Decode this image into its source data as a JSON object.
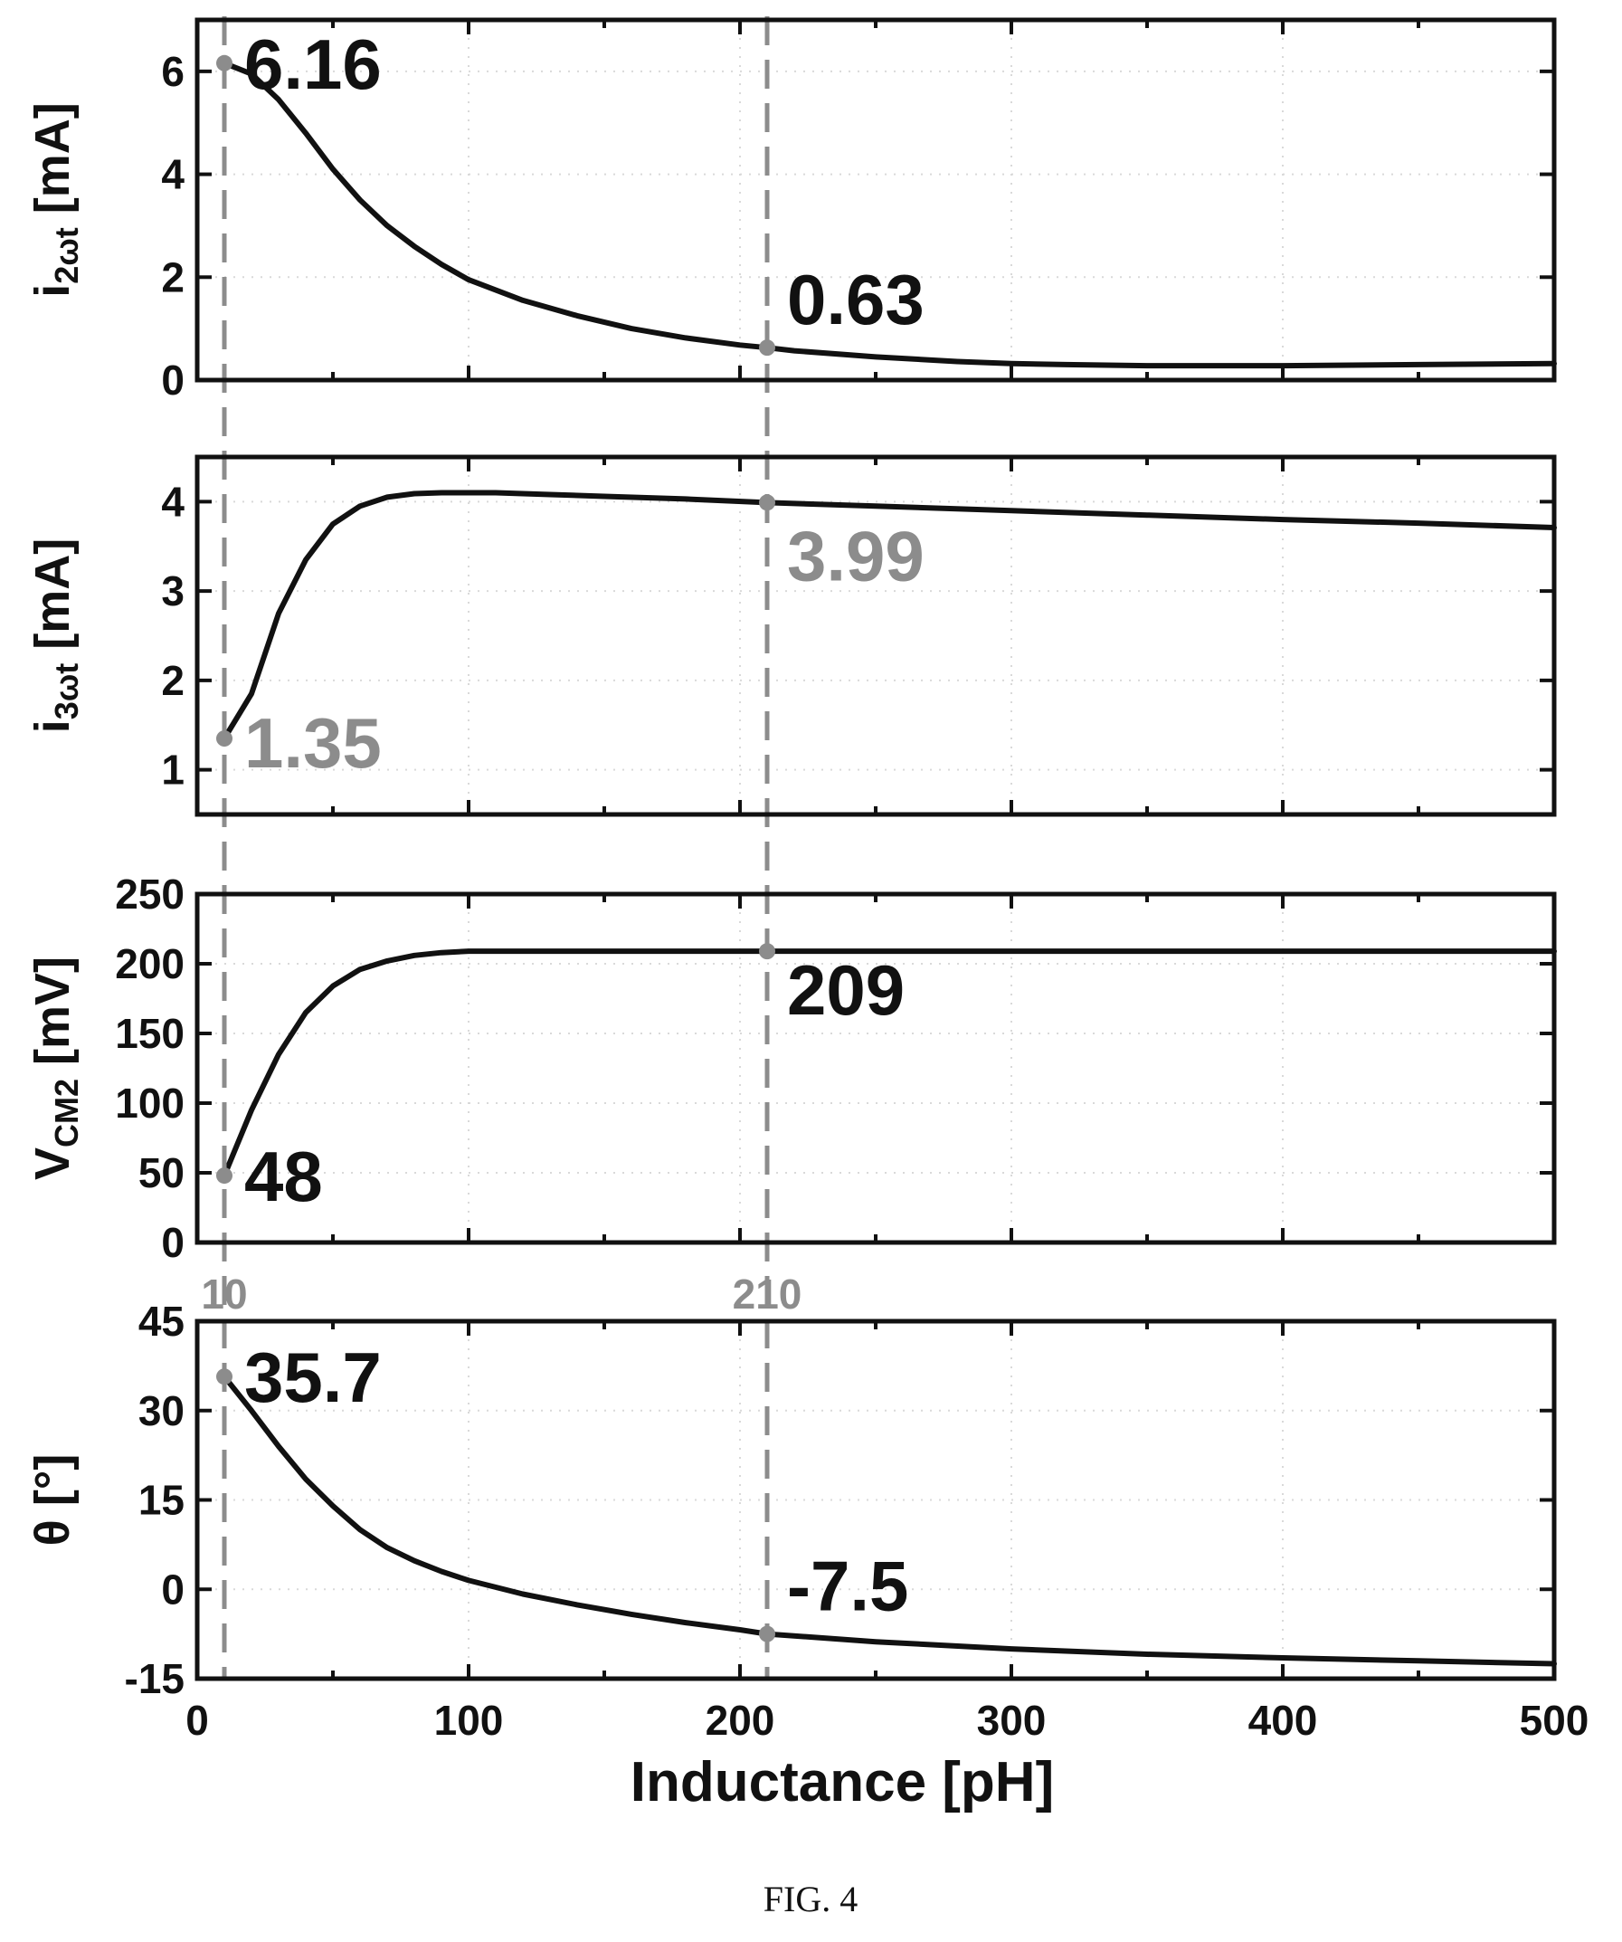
{
  "colors": {
    "curve": "#111111",
    "frame": "#111111",
    "guide": "#8c8c8c",
    "annotation_dark": "#111111",
    "annotation_gray": "#8c8c8c",
    "grid": "#d9d9d9"
  },
  "caption": "FIG. 4",
  "chart_data": {
    "type": "line",
    "shared_x": {
      "label": "Inductance [pH]",
      "range": [
        0,
        500
      ],
      "ticks": [
        "0",
        "100",
        "200",
        "300",
        "400",
        "500"
      ],
      "guide_lines": [
        10,
        210
      ],
      "guide_labels": [
        "10",
        "210"
      ]
    },
    "grid": true,
    "panels": [
      {
        "ylabel": {
          "main": "i",
          "sub": "2ωt",
          "rest": " [mA]"
        },
        "ylim": [
          0,
          7
        ],
        "yticks": [
          "0",
          "2",
          "4",
          "6"
        ],
        "ytick_values": [
          0,
          2,
          4,
          6
        ],
        "series": [
          {
            "x": [
              10,
              20,
              30,
              40,
              50,
              60,
              70,
              80,
              90,
              100,
              120,
              140,
              160,
              180,
              200,
              210,
              220,
              250,
              280,
              300,
              320,
              350,
              400,
              450,
              500
            ],
            "y": [
              6.16,
              5.95,
              5.45,
              4.8,
              4.1,
              3.5,
              3.0,
              2.6,
              2.25,
              1.95,
              1.55,
              1.25,
              1.0,
              0.82,
              0.68,
              0.63,
              0.57,
              0.45,
              0.36,
              0.32,
              0.3,
              0.28,
              0.28,
              0.3,
              0.32
            ]
          }
        ],
        "annotations": [
          {
            "x": 10,
            "y": 6.16,
            "text": "6.16",
            "tone": "dark"
          },
          {
            "x": 210,
            "y": 0.63,
            "text": "0.63",
            "tone": "dark"
          }
        ]
      },
      {
        "ylabel": {
          "main": "i",
          "sub": "3ωt",
          "rest": " [mA]"
        },
        "ylim": [
          0.5,
          4.5
        ],
        "yticks": [
          "1",
          "2",
          "3",
          "4"
        ],
        "ytick_values": [
          1,
          2,
          3,
          4
        ],
        "series": [
          {
            "x": [
              10,
              15,
              20,
              25,
              30,
              40,
              50,
              60,
              70,
              80,
              90,
              100,
              110,
              130,
              150,
              180,
              210,
              250,
              300,
              350,
              400,
              450,
              500
            ],
            "y": [
              1.35,
              1.6,
              1.85,
              2.3,
              2.75,
              3.35,
              3.75,
              3.95,
              4.05,
              4.09,
              4.1,
              4.1,
              4.1,
              4.08,
              4.06,
              4.03,
              3.99,
              3.95,
              3.9,
              3.85,
              3.8,
              3.76,
              3.71
            ]
          }
        ],
        "annotations": [
          {
            "x": 10,
            "y": 1.35,
            "text": "1.35",
            "tone": "gray"
          },
          {
            "x": 210,
            "y": 3.99,
            "text": "3.99",
            "tone": "gray"
          }
        ]
      },
      {
        "ylabel": {
          "main": "V",
          "sub": "CM2",
          "rest": " [mV]"
        },
        "ylim": [
          0,
          250
        ],
        "yticks": [
          "0",
          "50",
          "100",
          "150",
          "200",
          "250"
        ],
        "ytick_values": [
          0,
          50,
          100,
          150,
          200,
          250
        ],
        "series": [
          {
            "x": [
              10,
              20,
              30,
              40,
              50,
              60,
              70,
              80,
              90,
              100,
              120,
              150,
              200,
              210,
              250,
              300,
              400,
              500
            ],
            "y": [
              48,
              95,
              135,
              165,
              184,
              196,
              202,
              206,
              208,
              209,
              209,
              209,
              209,
              209,
              209,
              209,
              209,
              209
            ]
          }
        ],
        "annotations": [
          {
            "x": 10,
            "y": 48,
            "text": "48",
            "tone": "dark"
          },
          {
            "x": 210,
            "y": 209,
            "text": "209",
            "tone": "dark"
          }
        ]
      },
      {
        "ylabel": {
          "main": "θ [°]",
          "sub": "",
          "rest": ""
        },
        "ylim": [
          -15,
          45
        ],
        "yticks": [
          "-15",
          "0",
          "15",
          "30",
          "45"
        ],
        "ytick_values": [
          -15,
          0,
          15,
          30,
          45
        ],
        "series": [
          {
            "x": [
              10,
              20,
              30,
              40,
              50,
              60,
              70,
              80,
              90,
              100,
              120,
              140,
              160,
              180,
              200,
              210,
              250,
              300,
              350,
              400,
              450,
              500
            ],
            "y": [
              35.7,
              30,
              24,
              18.5,
              14,
              10,
              7,
              4.8,
              3,
              1.5,
              -0.8,
              -2.6,
              -4.2,
              -5.6,
              -6.8,
              -7.5,
              -8.8,
              -10,
              -10.9,
              -11.5,
              -12,
              -12.5
            ]
          }
        ],
        "annotations": [
          {
            "x": 10,
            "y": 35.7,
            "text": "35.7",
            "tone": "dark"
          },
          {
            "x": 210,
            "y": -7.5,
            "text": "-7.5",
            "tone": "dark"
          }
        ]
      }
    ]
  }
}
